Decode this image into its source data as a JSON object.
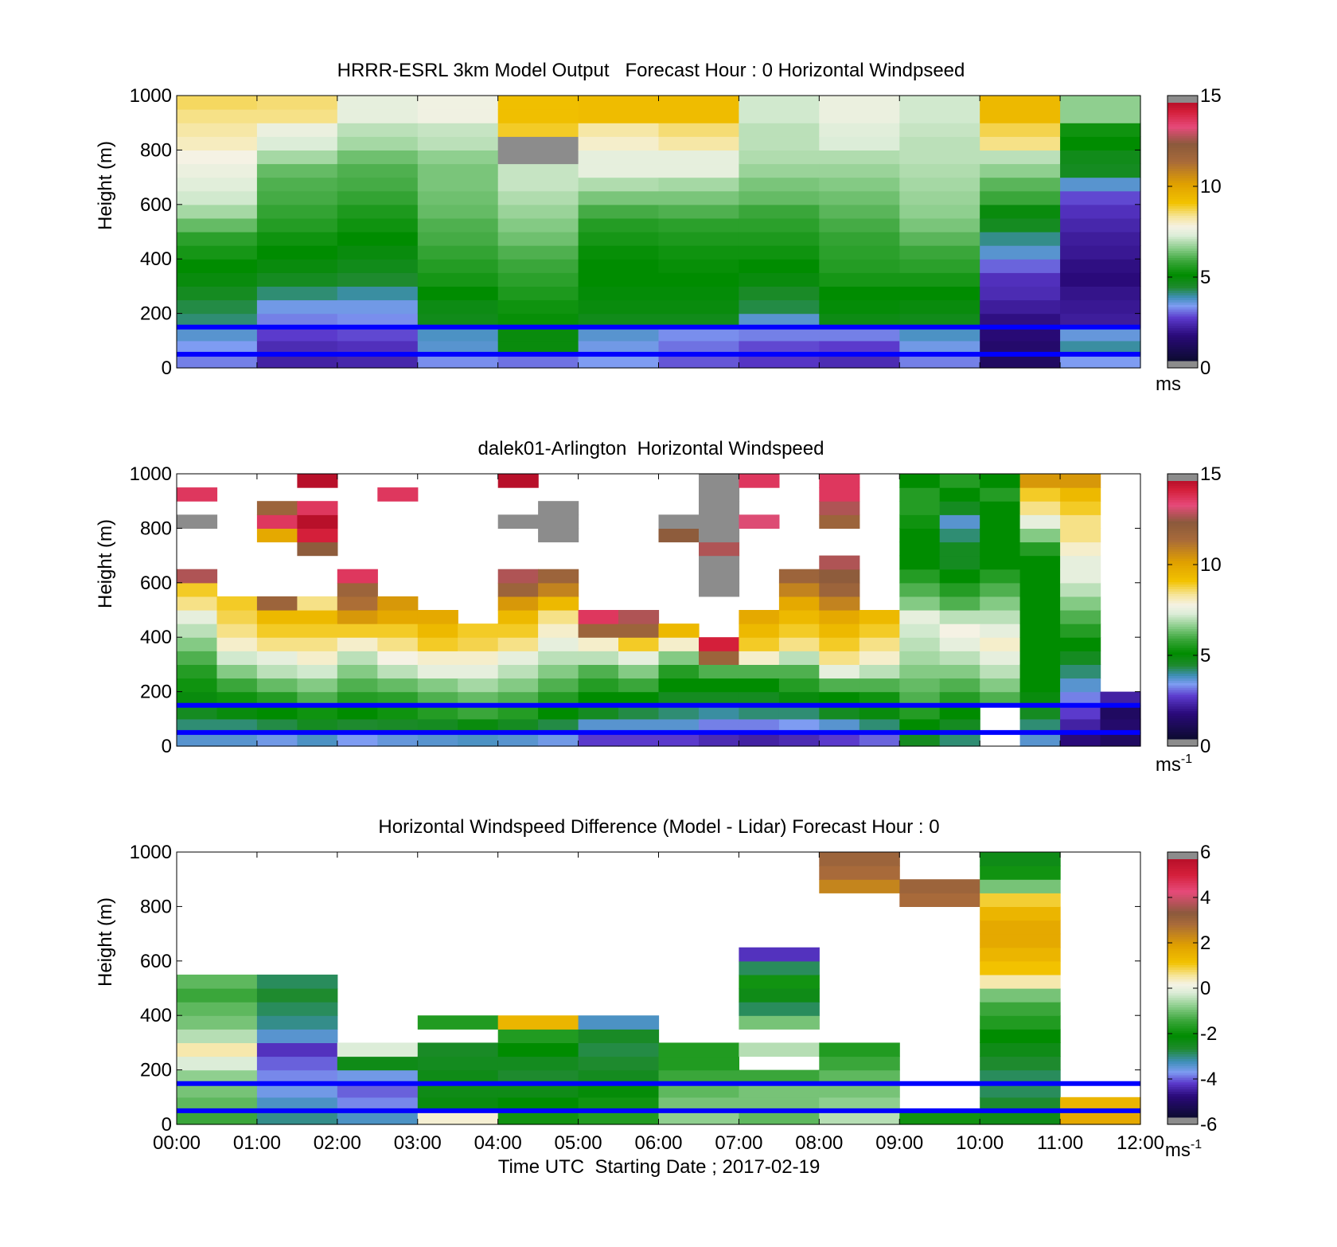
{
  "chart_data": [
    {
      "type": "heatmap",
      "title": "HRRR-ESRL 3km Model Output   Forecast Hour : 0 Horizontal Windpseed",
      "ylabel": "Height (m)",
      "xlim": [
        0,
        12
      ],
      "ylim": [
        0,
        1000
      ],
      "yticks": [
        "0",
        "200",
        "400",
        "600",
        "800",
        "1000"
      ],
      "x_tick_labels_shown": false,
      "colorbar": {
        "range": [
          0,
          15
        ],
        "ticks": [
          "0",
          "5",
          "10",
          "15"
        ],
        "unit": "ms",
        "unit_sup": ""
      },
      "reference_lines_m": [
        50,
        150
      ],
      "reference_line_color": "#0000ff",
      "data_hours": [
        0,
        1,
        2,
        3,
        4,
        5,
        6,
        7,
        8,
        9,
        10,
        11
      ],
      "data_heights_m": [
        25,
        75,
        125,
        175,
        225,
        275,
        325,
        375,
        425,
        475,
        525,
        575,
        625,
        675,
        725,
        775,
        825,
        875,
        925,
        975
      ],
      "values_ms": [
        [
          3.0,
          3.2,
          3.5,
          4.0,
          4.2,
          4.5,
          4.8,
          5.0,
          5.3,
          5.6,
          6.2,
          6.8,
          7.2,
          7.4,
          7.6,
          7.8,
          8.1,
          8.3,
          8.5,
          8.7
        ],
        [
          2.0,
          2.2,
          2.5,
          3.0,
          3.3,
          4.0,
          4.5,
          4.8,
          5.0,
          5.2,
          5.5,
          5.7,
          5.9,
          6.0,
          6.2,
          6.8,
          7.3,
          7.6,
          8.5,
          8.6
        ],
        [
          2.1,
          2.3,
          2.6,
          3.1,
          3.3,
          3.8,
          4.3,
          4.6,
          4.8,
          5.0,
          5.2,
          5.4,
          5.7,
          5.9,
          6.0,
          6.3,
          6.8,
          7.0,
          7.5,
          7.5
        ],
        [
          3.1,
          3.5,
          3.6,
          4.6,
          4.7,
          5.0,
          5.3,
          5.5,
          5.7,
          5.9,
          6.0,
          6.2,
          6.3,
          6.4,
          6.4,
          6.6,
          7.0,
          7.1,
          7.7,
          7.7
        ],
        [
          2.9,
          4.8,
          4.8,
          5.1,
          5.2,
          5.4,
          5.6,
          5.8,
          6.0,
          6.3,
          6.5,
          6.7,
          6.9,
          7.1,
          7.1,
          15.5,
          15.5,
          9.0,
          9.3,
          9.3
        ],
        [
          3.2,
          3.3,
          3.5,
          4.6,
          4.8,
          4.9,
          5.0,
          5.0,
          5.1,
          5.3,
          5.5,
          5.9,
          6.4,
          6.9,
          7.5,
          7.5,
          8.0,
          8.3,
          9.4,
          9.4
        ],
        [
          2.7,
          2.9,
          3.1,
          4.6,
          4.8,
          4.9,
          5.0,
          5.1,
          5.2,
          5.4,
          5.6,
          6.0,
          6.4,
          6.8,
          7.5,
          7.5,
          8.3,
          8.6,
          9.4,
          9.4
        ],
        [
          2.4,
          2.6,
          3.0,
          3.5,
          4.2,
          4.4,
          4.8,
          5.0,
          5.2,
          5.4,
          5.6,
          5.8,
          6.2,
          6.4,
          6.7,
          6.9,
          7.0,
          7.0,
          7.2,
          7.2
        ],
        [
          2.2,
          2.5,
          3.0,
          4.7,
          4.9,
          5.0,
          5.3,
          5.5,
          5.6,
          5.7,
          5.9,
          6.1,
          6.3,
          6.5,
          6.7,
          6.9,
          7.3,
          7.4,
          7.6,
          7.6
        ],
        [
          3.0,
          3.3,
          3.6,
          4.6,
          4.8,
          5.0,
          5.3,
          5.6,
          5.8,
          6.1,
          6.4,
          6.6,
          6.7,
          6.8,
          6.9,
          7.0,
          7.0,
          7.1,
          7.2,
          7.2
        ],
        [
          1.0,
          1.2,
          1.4,
          1.6,
          1.9,
          2.2,
          2.3,
          2.8,
          3.5,
          3.9,
          4.5,
          4.8,
          5.8,
          6.1,
          6.6,
          7.0,
          8.5,
          8.8,
          9.5,
          9.5
        ],
        [
          3.2,
          3.8,
          3.4,
          1.9,
          1.8,
          1.7,
          1.5,
          1.6,
          1.8,
          1.9,
          2.1,
          2.3,
          2.6,
          3.5,
          4.5,
          4.6,
          5.0,
          5.2,
          6.6,
          6.6
        ]
      ]
    },
    {
      "type": "heatmap",
      "title": "dalek01-Arlington  Horizontal Windspeed",
      "ylabel": "Height (m)",
      "xlim": [
        0,
        12
      ],
      "ylim": [
        0,
        1000
      ],
      "yticks": [
        "0",
        "200",
        "400",
        "600",
        "800",
        "1000"
      ],
      "x_tick_labels_shown": false,
      "colorbar": {
        "range": [
          0,
          15
        ],
        "ticks": [
          "0",
          "5",
          "10",
          "15"
        ],
        "unit": "ms",
        "unit_sup": "-1"
      },
      "reference_lines_m": [
        50,
        150
      ],
      "reference_line_color": "#0000ff",
      "data_hours": [
        0.25,
        0.75,
        1.25,
        1.75,
        2.25,
        2.75,
        3.25,
        3.75,
        4.25,
        4.75,
        5.25,
        5.75,
        6.25,
        6.75,
        7.25,
        7.75,
        8.25,
        8.75,
        9.25,
        9.75,
        10.25,
        10.75,
        11.25,
        11.75
      ],
      "data_heights_m": [
        25,
        75,
        125,
        175,
        225,
        275,
        325,
        375,
        425,
        475,
        525,
        575,
        625,
        675,
        725,
        775,
        825,
        875,
        925,
        975
      ],
      "values_ms": [
        [
          3.5,
          4.0,
          4.5,
          4.8,
          5.2,
          5.5,
          6.0,
          6.5,
          7.0,
          7.5,
          8.5,
          9.0,
          13.0,
          null,
          null,
          null,
          15.5,
          null,
          14.0,
          null
        ],
        [
          3.5,
          4.0,
          4.8,
          5.2,
          5.8,
          6.5,
          7.2,
          8.0,
          8.5,
          8.8,
          9.0,
          null,
          null,
          null,
          null,
          null,
          null,
          null,
          null,
          null
        ],
        [
          3.3,
          4.2,
          5.0,
          5.5,
          6.2,
          7.0,
          7.5,
          8.5,
          9.0,
          9.5,
          12.0,
          null,
          null,
          null,
          null,
          10.0,
          14.0,
          12.0,
          null,
          null
        ],
        [
          3.6,
          4.5,
          5.2,
          6.0,
          6.5,
          7.2,
          8.0,
          8.5,
          9.0,
          9.5,
          8.5,
          null,
          null,
          null,
          12.5,
          14.5,
          15.0,
          14.0,
          null,
          15.0
        ],
        [
          3.2,
          4.3,
          5.0,
          5.5,
          6.0,
          6.5,
          7.0,
          8.0,
          9.0,
          10.5,
          11.5,
          12.0,
          14.0,
          null,
          null,
          null,
          null,
          null,
          null,
          null
        ],
        [
          3.4,
          4.4,
          5.2,
          5.6,
          6.2,
          7.0,
          7.8,
          8.5,
          9.0,
          10.0,
          10.5,
          null,
          null,
          null,
          null,
          null,
          null,
          null,
          14.0,
          null
        ],
        [
          3.5,
          4.5,
          5.5,
          6.0,
          6.5,
          7.5,
          8.0,
          9.0,
          9.5,
          10.0,
          null,
          null,
          null,
          null,
          null,
          null,
          null,
          null,
          null,
          null
        ],
        [
          3.6,
          4.8,
          5.8,
          6.2,
          6.8,
          7.5,
          8.0,
          8.8,
          9.0,
          null,
          null,
          null,
          null,
          null,
          null,
          null,
          null,
          null,
          null,
          null
        ],
        [
          3.5,
          4.5,
          5.5,
          6.0,
          6.5,
          7.0,
          7.5,
          8.5,
          9.0,
          9.5,
          10.5,
          12.0,
          13.0,
          null,
          null,
          null,
          15.5,
          null,
          null,
          15.0
        ],
        [
          3.3,
          4.2,
          5.0,
          5.5,
          6.0,
          6.5,
          7.0,
          7.5,
          8.0,
          8.5,
          9.5,
          11.0,
          12.0,
          null,
          null,
          15.5,
          15.5,
          15.5,
          null,
          null
        ],
        [
          2.5,
          3.5,
          4.5,
          5.0,
          5.5,
          6.0,
          7.0,
          8.0,
          12.0,
          14.0,
          null,
          null,
          null,
          null,
          null,
          null,
          null,
          null,
          null,
          null
        ],
        [
          2.5,
          3.5,
          4.2,
          5.0,
          5.8,
          6.5,
          7.5,
          9.0,
          12.0,
          13.0,
          null,
          null,
          null,
          null,
          null,
          null,
          null,
          null,
          null,
          null
        ],
        [
          2.5,
          3.5,
          4.0,
          4.5,
          5.0,
          5.5,
          6.5,
          8.0,
          9.5,
          null,
          null,
          null,
          null,
          null,
          null,
          12.5,
          15.5,
          null,
          null,
          null
        ],
        [
          2.2,
          3.0,
          3.8,
          4.5,
          5.0,
          6.0,
          12.0,
          14.5,
          null,
          null,
          null,
          15.5,
          15.5,
          15.5,
          13.0,
          15.5,
          15.5,
          15.5,
          15.5,
          15.5
        ],
        [
          2.0,
          3.0,
          4.0,
          4.5,
          5.0,
          6.0,
          8.0,
          9.0,
          9.5,
          10.0,
          null,
          null,
          null,
          null,
          null,
          null,
          13.5,
          null,
          null,
          14.0
        ],
        [
          2.2,
          3.2,
          4.0,
          4.8,
          5.5,
          6.0,
          7.0,
          8.5,
          9.0,
          9.5,
          10.0,
          11.0,
          12.0,
          null,
          null,
          null,
          null,
          null,
          null,
          null
        ],
        [
          2.5,
          3.5,
          4.5,
          5.0,
          6.0,
          7.5,
          8.5,
          9.0,
          9.5,
          10.0,
          11.0,
          12.0,
          12.5,
          13.0,
          null,
          null,
          12.0,
          13.0,
          14.0,
          14.0
        ],
        [
          2.8,
          4.0,
          4.8,
          5.2,
          6.0,
          7.0,
          8.0,
          8.5,
          9.0,
          9.5,
          null,
          null,
          null,
          null,
          null,
          null,
          null,
          null,
          null,
          null
        ],
        [
          4.5,
          5.0,
          5.5,
          6.0,
          6.2,
          6.5,
          6.8,
          7.0,
          7.2,
          7.5,
          6.5,
          6.0,
          5.5,
          5.0,
          5.0,
          5.0,
          5.2,
          5.5,
          5.5,
          5.0
        ],
        [
          4.0,
          4.5,
          5.0,
          5.5,
          6.0,
          6.5,
          7.0,
          7.5,
          7.8,
          7.0,
          6.0,
          5.5,
          5.0,
          4.5,
          4.5,
          4.0,
          3.5,
          4.5,
          5.0,
          5.5
        ],
        [
          null,
          null,
          null,
          6.0,
          6.5,
          7.0,
          7.5,
          8.0,
          7.5,
          7.0,
          6.5,
          6.0,
          5.5,
          5.0,
          5.0,
          5.0,
          5.0,
          5.0,
          5.5,
          5.0
        ],
        [
          3.5,
          4.0,
          4.5,
          4.8,
          5.0,
          5.0,
          5.0,
          5.0,
          5.0,
          5.0,
          5.0,
          5.0,
          5.0,
          5.0,
          5.5,
          6.5,
          7.5,
          8.5,
          9.0,
          10.5
        ],
        [
          1.5,
          2.0,
          2.5,
          3.0,
          3.5,
          4.0,
          4.5,
          5.0,
          5.5,
          6.0,
          6.5,
          7.0,
          7.5,
          7.5,
          8.0,
          8.5,
          8.5,
          9.0,
          9.5,
          10.5
        ],
        [
          1.0,
          1.2,
          1.0,
          2.0,
          null,
          null,
          null,
          null,
          null,
          null,
          null,
          null,
          null,
          null,
          null,
          null,
          null,
          null,
          null,
          null
        ]
      ]
    },
    {
      "type": "heatmap",
      "title": "Horizontal Windspeed Difference (Model - Lidar) Forecast Hour : 0",
      "xlabel": "Time UTC  Starting Date ; 2017-02-19",
      "ylabel": "Height (m)",
      "xlim": [
        0,
        12
      ],
      "ylim": [
        0,
        1000
      ],
      "xticks": [
        "00:00",
        "01:00",
        "02:00",
        "03:00",
        "04:00",
        "05:00",
        "06:00",
        "07:00",
        "08:00",
        "09:00",
        "10:00",
        "11:00",
        "12:00"
      ],
      "yticks": [
        "0",
        "200",
        "400",
        "600",
        "800",
        "1000"
      ],
      "colorbar": {
        "range": [
          -6,
          6
        ],
        "ticks": [
          "-6",
          "-4",
          "-2",
          "0",
          "2",
          "4",
          "6"
        ],
        "unit": "ms",
        "unit_sup": "-1"
      },
      "reference_lines_m": [
        50,
        150
      ],
      "reference_line_color": "#0000ff",
      "data_hours": [
        0,
        1,
        2,
        3,
        4,
        5,
        6,
        7,
        8,
        9,
        10,
        11
      ],
      "data_heights_m": [
        25,
        75,
        125,
        175,
        225,
        275,
        325,
        375,
        425,
        475,
        525,
        575,
        625,
        675,
        725,
        775,
        825,
        875,
        925,
        975
      ],
      "values_ms": [
        [
          -1.5,
          -1.2,
          -1.0,
          -0.8,
          -0.2,
          0.5,
          -0.5,
          -1.0,
          -1.2,
          -1.5,
          -1.2,
          null,
          null,
          null,
          null,
          null,
          null,
          null,
          null,
          null
        ],
        [
          -3.2,
          -3.5,
          -3.8,
          -4.0,
          -4.2,
          -4.5,
          -3.6,
          -3.2,
          -3.0,
          -2.8,
          -3.0,
          null,
          null,
          null,
          null,
          null,
          null,
          null,
          null,
          null
        ],
        [
          -3.5,
          -4.0,
          -4.2,
          -3.8,
          -2.5,
          -0.2,
          null,
          null,
          null,
          null,
          null,
          null,
          null,
          null,
          null,
          null,
          null,
          null,
          null,
          null
        ],
        [
          0.3,
          -2.4,
          -2.5,
          -2.5,
          -2.6,
          -2.7,
          null,
          -1.8,
          null,
          null,
          null,
          null,
          null,
          null,
          null,
          null,
          null,
          null,
          null,
          null
        ],
        [
          -2.0,
          -2.2,
          -2.5,
          -2.8,
          -2.6,
          -2.2,
          -1.8,
          1.5,
          null,
          null,
          null,
          null,
          null,
          null,
          null,
          null,
          null,
          null,
          null,
          null
        ],
        [
          -1.8,
          -2.0,
          -2.3,
          -2.6,
          -2.8,
          -2.9,
          -2.7,
          -3.5,
          null,
          null,
          null,
          null,
          null,
          null,
          null,
          null,
          null,
          null,
          null,
          null
        ],
        [
          -0.8,
          -1.0,
          -1.2,
          -1.5,
          -1.8,
          -1.8,
          null,
          null,
          null,
          null,
          null,
          null,
          null,
          null,
          null,
          null,
          null,
          null,
          null,
          null
        ],
        [
          -1.2,
          -1.0,
          -1.0,
          -1.5,
          null,
          -0.5,
          null,
          -1.0,
          -3.0,
          -2.5,
          -2.0,
          -3.0,
          -4.5,
          null,
          null,
          null,
          null,
          null,
          null,
          null
        ],
        [
          -0.5,
          -0.8,
          -1.0,
          -1.2,
          -1.5,
          -1.8,
          null,
          null,
          null,
          null,
          null,
          null,
          null,
          null,
          null,
          null,
          null,
          2.5,
          3.0,
          3.2
        ],
        [
          -2.0,
          null,
          null,
          null,
          null,
          null,
          null,
          null,
          null,
          null,
          null,
          null,
          null,
          null,
          null,
          null,
          3.0,
          3.2,
          null,
          null
        ],
        [
          -2.5,
          -2.8,
          -3.0,
          -3.0,
          -2.8,
          -2.5,
          -2.2,
          -1.8,
          -1.5,
          -1.0,
          0.5,
          1.2,
          1.5,
          1.8,
          1.8,
          1.5,
          1.0,
          -1.0,
          -2.0,
          -2.5
        ],
        [
          1.8,
          1.5,
          null,
          null,
          null,
          null,
          null,
          null,
          null,
          null,
          null,
          null,
          null,
          null,
          null,
          null,
          null,
          null,
          null,
          null
        ]
      ]
    }
  ]
}
